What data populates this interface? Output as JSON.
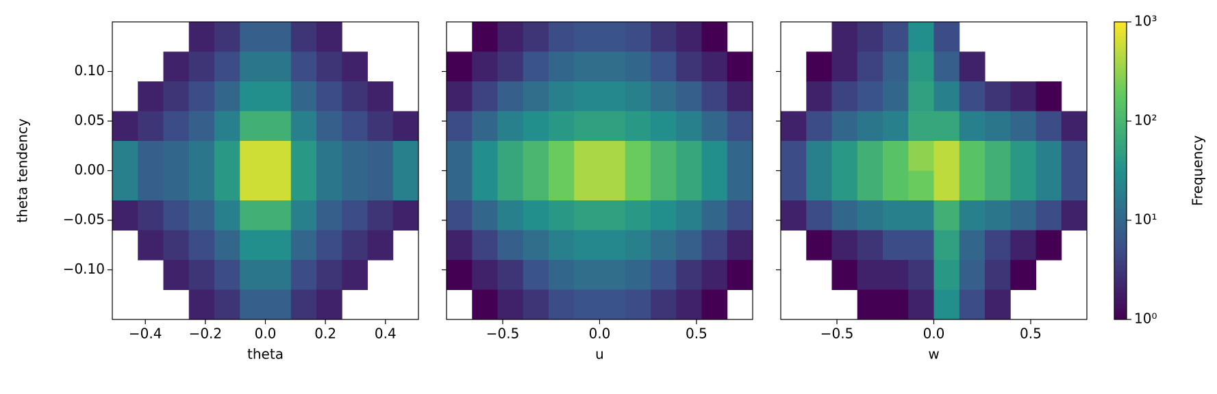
{
  "chart_data": [
    {
      "type": "heatmap",
      "xlabel": "theta",
      "ylabel": "theta tendency",
      "xlim": [
        -0.51,
        0.51
      ],
      "ylim": [
        -0.15,
        0.15
      ],
      "xticks": [
        {
          "value": -0.4,
          "label": "−0.4"
        },
        {
          "value": -0.2,
          "label": "−0.2"
        },
        {
          "value": 0,
          "label": "0.0"
        },
        0.2,
        0.4
      ],
      "yticks": [
        {
          "value": -0.1,
          "label": "−0.10"
        },
        {
          "value": -0.05,
          "label": "−0.05"
        },
        {
          "value": 0,
          "label": "0.00"
        },
        {
          "value": 0.05,
          "label": "0.05"
        },
        {
          "value": 0.1,
          "label": "0.10"
        }
      ],
      "z": [
        [
          null,
          null,
          null,
          2,
          3,
          8,
          8,
          3,
          2,
          null,
          null,
          null
        ],
        [
          null,
          null,
          2,
          3,
          5,
          15,
          15,
          5,
          3,
          2,
          null,
          null
        ],
        [
          null,
          2,
          3,
          5,
          10,
          30,
          30,
          10,
          5,
          3,
          2,
          null
        ],
        [
          2,
          3,
          5,
          8,
          20,
          80,
          80,
          20,
          8,
          5,
          3,
          2
        ],
        [
          20,
          8,
          10,
          15,
          40,
          600,
          600,
          40,
          15,
          10,
          8,
          20
        ],
        [
          20,
          8,
          10,
          15,
          40,
          600,
          600,
          40,
          15,
          10,
          8,
          20
        ],
        [
          2,
          3,
          5,
          8,
          20,
          80,
          80,
          20,
          8,
          5,
          3,
          2
        ],
        [
          null,
          2,
          3,
          5,
          10,
          30,
          30,
          10,
          5,
          3,
          2,
          null
        ],
        [
          null,
          null,
          2,
          3,
          5,
          15,
          15,
          5,
          3,
          2,
          null,
          null
        ],
        [
          null,
          null,
          null,
          2,
          3,
          8,
          8,
          3,
          2,
          null,
          null,
          null
        ]
      ]
    },
    {
      "type": "heatmap",
      "xlabel": "u",
      "xlim": [
        -0.79,
        0.79
      ],
      "ylim": [
        -0.15,
        0.15
      ],
      "xticks": [
        {
          "value": -0.5,
          "label": "−0.5"
        },
        {
          "value": 0,
          "label": "0.0"
        },
        0.5
      ],
      "yticks": [
        -0.1,
        -0.05,
        0,
        0.05,
        0.1
      ],
      "z": [
        [
          null,
          1,
          2,
          3,
          5,
          6,
          6,
          5,
          3,
          2,
          1,
          null
        ],
        [
          1,
          2,
          3,
          6,
          10,
          12,
          12,
          10,
          6,
          3,
          2,
          1
        ],
        [
          2,
          4,
          8,
          12,
          20,
          25,
          25,
          20,
          12,
          8,
          4,
          2
        ],
        [
          5,
          10,
          20,
          30,
          40,
          50,
          50,
          40,
          30,
          20,
          10,
          5
        ],
        [
          10,
          30,
          60,
          100,
          200,
          400,
          400,
          200,
          100,
          60,
          30,
          10
        ],
        [
          10,
          30,
          60,
          100,
          200,
          400,
          400,
          200,
          100,
          60,
          30,
          10
        ],
        [
          5,
          10,
          20,
          30,
          40,
          50,
          50,
          40,
          30,
          20,
          10,
          5
        ],
        [
          2,
          4,
          8,
          12,
          20,
          25,
          25,
          20,
          12,
          8,
          4,
          2
        ],
        [
          1,
          2,
          3,
          6,
          10,
          12,
          12,
          10,
          6,
          3,
          2,
          1
        ],
        [
          null,
          1,
          2,
          3,
          5,
          6,
          6,
          5,
          3,
          2,
          1,
          null
        ]
      ]
    },
    {
      "type": "heatmap",
      "xlabel": "w",
      "xlim": [
        -0.79,
        0.79
      ],
      "ylim": [
        -0.15,
        0.15
      ],
      "xticks": [
        {
          "value": -0.5,
          "label": "−0.5"
        },
        {
          "value": 0,
          "label": "0.0"
        },
        0.5
      ],
      "yticks": [
        -0.1,
        -0.05,
        0,
        0.05,
        0.1
      ],
      "z": [
        [
          null,
          null,
          2,
          3,
          5,
          30,
          5,
          null,
          null,
          null,
          null,
          null
        ],
        [
          null,
          1,
          2,
          4,
          8,
          40,
          8,
          2,
          null,
          null,
          null,
          null
        ],
        [
          null,
          2,
          4,
          6,
          10,
          50,
          20,
          5,
          3,
          2,
          1,
          null
        ],
        [
          2,
          5,
          10,
          15,
          20,
          60,
          60,
          20,
          15,
          10,
          5,
          2
        ],
        [
          5,
          20,
          40,
          80,
          150,
          300,
          500,
          150,
          80,
          40,
          20,
          5
        ],
        [
          5,
          20,
          40,
          80,
          150,
          200,
          500,
          150,
          80,
          40,
          20,
          5
        ],
        [
          2,
          5,
          10,
          15,
          20,
          20,
          80,
          20,
          15,
          10,
          5,
          2
        ],
        [
          null,
          1,
          2,
          3,
          5,
          5,
          50,
          10,
          4,
          2,
          1,
          null
        ],
        [
          null,
          null,
          1,
          2,
          2,
          3,
          40,
          8,
          3,
          1,
          null,
          null
        ],
        [
          null,
          null,
          null,
          1,
          1,
          2,
          30,
          5,
          2,
          null,
          null,
          null
        ]
      ]
    }
  ],
  "colorbar": {
    "label": "Frequency",
    "log": true,
    "lim": [
      1,
      1000
    ],
    "ticks": [
      {
        "value": 1,
        "label": "10⁰"
      },
      {
        "value": 10,
        "label": "10¹"
      },
      {
        "value": 100,
        "label": "10²"
      },
      {
        "value": 1000,
        "label": "10³"
      }
    ]
  }
}
